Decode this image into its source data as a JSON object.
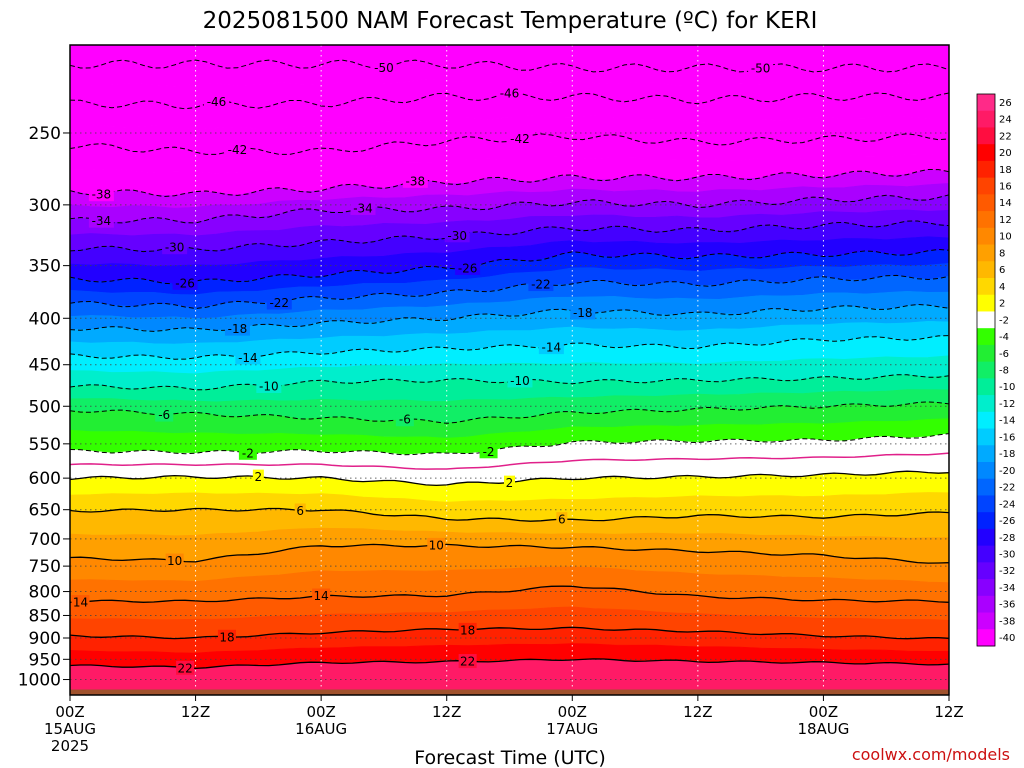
{
  "chart_data": {
    "type": "heatmap",
    "title": "2025081500 NAM Forecast Temperature (ºC) for KERI",
    "xlabel": "Forecast Time (UTC)",
    "ylabel": "",
    "y_scale": "log-pressure",
    "ylim": [
      1040,
      200
    ],
    "grid": true,
    "pressure_ticks": [
      250,
      300,
      350,
      400,
      450,
      500,
      550,
      600,
      650,
      700,
      750,
      800,
      850,
      900,
      950,
      1000
    ],
    "x_ticks": [
      {
        "hour": 0,
        "label": "00Z",
        "sub1": "15AUG",
        "sub2": "2025"
      },
      {
        "hour": 12,
        "label": "12Z",
        "sub1": "",
        "sub2": ""
      },
      {
        "hour": 24,
        "label": "00Z",
        "sub1": "16AUG",
        "sub2": ""
      },
      {
        "hour": 36,
        "label": "12Z",
        "sub1": "",
        "sub2": ""
      },
      {
        "hour": 48,
        "label": "00Z",
        "sub1": "17AUG",
        "sub2": ""
      },
      {
        "hour": 60,
        "label": "12Z",
        "sub1": "",
        "sub2": ""
      },
      {
        "hour": 72,
        "label": "00Z",
        "sub1": "18AUG",
        "sub2": ""
      },
      {
        "hour": 84,
        "label": "12Z",
        "sub1": "",
        "sub2": ""
      }
    ],
    "x_range_hours": [
      0,
      84
    ],
    "colorbar": {
      "levels": [
        26,
        24,
        22,
        20,
        18,
        16,
        14,
        12,
        10,
        8,
        6,
        4,
        2,
        -2,
        -4,
        -6,
        -8,
        -10,
        -12,
        -14,
        -16,
        -18,
        -20,
        -22,
        -24,
        -26,
        -28,
        -30,
        -32,
        -34,
        -36,
        -38,
        -40
      ],
      "colors": [
        "#ff2a88",
        "#ff1a66",
        "#ff0d40",
        "#ff0000",
        "#ff2200",
        "#ff4400",
        "#ff5a00",
        "#ff7200",
        "#ff8800",
        "#ffa000",
        "#ffb800",
        "#ffd800",
        "#ffff00",
        "#ffffff",
        "#33ff00",
        "#22ee33",
        "#11ee66",
        "#00ee99",
        "#00eecc",
        "#00eeff",
        "#00ccff",
        "#00aaff",
        "#0088ff",
        "#0066ff",
        "#0044ff",
        "#0022ff",
        "#2200ff",
        "#4400ff",
        "#6600ff",
        "#8800ff",
        "#aa00ff",
        "#cc00ff",
        "#ff00ff"
      ]
    },
    "isotherms": [
      {
        "temp": -50,
        "pressures": [
          210,
          210,
          210,
          210,
          212,
          212,
          212,
          212
        ]
      },
      {
        "temp": -46,
        "pressures": [
          232,
          233,
          232,
          228,
          228,
          230,
          228,
          228
        ]
      },
      {
        "temp": -42,
        "pressures": [
          258,
          262,
          262,
          255,
          252,
          256,
          254,
          252
        ]
      },
      {
        "temp": -38,
        "pressures": [
          290,
          292,
          288,
          283,
          280,
          280,
          278,
          276
        ]
      },
      {
        "temp": -34,
        "pressures": [
          312,
          312,
          304,
          303,
          298,
          300,
          296,
          294
        ]
      },
      {
        "temp": -30,
        "pressures": [
          335,
          336,
          330,
          325,
          318,
          320,
          316,
          314
        ]
      },
      {
        "temp": -26,
        "pressures": [
          362,
          365,
          358,
          352,
          340,
          342,
          340,
          338
        ]
      },
      {
        "temp": -22,
        "pressures": [
          385,
          388,
          380,
          375,
          365,
          367,
          362,
          360
        ]
      },
      {
        "temp": -18,
        "pressures": [
          410,
          412,
          405,
          400,
          392,
          396,
          390,
          388
        ]
      },
      {
        "temp": -14,
        "pressures": [
          440,
          442,
          436,
          432,
          428,
          430,
          422,
          420
        ]
      },
      {
        "temp": -10,
        "pressures": [
          475,
          478,
          470,
          468,
          470,
          468,
          466,
          462
        ]
      },
      {
        "temp": -6,
        "pressures": [
          505,
          510,
          515,
          520,
          508,
          504,
          500,
          496
        ]
      },
      {
        "temp": -2,
        "pressures": [
          560,
          562,
          560,
          565,
          548,
          546,
          545,
          538
        ]
      },
      {
        "temp": 2,
        "pressures": [
          600,
          598,
          600,
          610,
          600,
          598,
          595,
          590
        ]
      },
      {
        "temp": 6,
        "pressures": [
          652,
          650,
          650,
          665,
          668,
          660,
          662,
          655
        ]
      },
      {
        "temp": 10,
        "pressures": [
          735,
          740,
          712,
          712,
          715,
          722,
          730,
          745
        ]
      },
      {
        "temp": 14,
        "pressures": [
          820,
          820,
          810,
          808,
          788,
          810,
          818,
          820
        ]
      },
      {
        "temp": 18,
        "pressures": [
          895,
          900,
          888,
          880,
          878,
          885,
          895,
          902
        ]
      },
      {
        "temp": 22,
        "pressures": [
          965,
          970,
          958,
          956,
          950,
          955,
          958,
          962
        ]
      }
    ],
    "isotherm_labels": [
      {
        "temp": "-50",
        "hour": 30,
        "h2": 66
      },
      {
        "temp": "-46",
        "hour": 14,
        "h2": 42
      },
      {
        "temp": "-42",
        "hour": 16,
        "h2": 43
      },
      {
        "temp": "-38",
        "hour": 3,
        "h2": 33
      },
      {
        "temp": "-34",
        "hour": 3,
        "h2": 28
      },
      {
        "temp": "-30",
        "hour": 10,
        "h2": 37
      },
      {
        "temp": "-26",
        "hour": 11,
        "h2": 38
      },
      {
        "temp": "-22",
        "hour": 20,
        "h2": 45
      },
      {
        "temp": "-18",
        "hour": 16,
        "h2": 49
      },
      {
        "temp": "-14",
        "hour": 17,
        "h2": 46
      },
      {
        "temp": "-10",
        "hour": 19,
        "h2": 43
      },
      {
        "temp": "-6",
        "hour": 9,
        "h2": 32
      },
      {
        "temp": "-2",
        "hour": 17,
        "h2": 40
      },
      {
        "temp": "2",
        "hour": 18,
        "h2": 42
      },
      {
        "temp": "6",
        "hour": 22,
        "h2": 47
      },
      {
        "temp": "10",
        "hour": 10,
        "h2": 35
      },
      {
        "temp": "14",
        "hour": 1,
        "h2": 24
      },
      {
        "temp": "18",
        "hour": 15,
        "h2": 38
      },
      {
        "temp": "22",
        "hour": 11,
        "h2": 38
      }
    ],
    "freezing_line_color": "#e0208a",
    "ground_color": "#a0522d"
  },
  "credit": "coolwx.com/models"
}
